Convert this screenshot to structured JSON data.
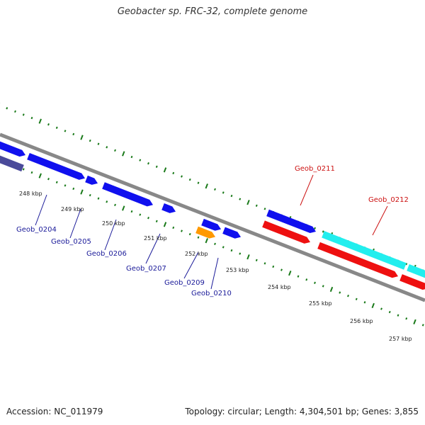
{
  "title": "Geobacter sp. FRC-32, complete genome",
  "footer": {
    "accession": "Accession: NC_011979",
    "topology": "Topology: circular; Length: 4,304,501 bp; Genes: 3,855"
  },
  "colors": {
    "backbone": "#888888",
    "tick": "#1a7a1a",
    "forward_gene": "#1010ee",
    "reverse_gene": "#ee1010",
    "rna_gene": "#22eeee",
    "orange_gene": "#ff9900",
    "dark_gene": "#4a4a9a",
    "forward_label": "#1a1a99",
    "reverse_label": "#cc1111"
  },
  "tick_labels": [
    "248 kbp",
    "249 kbp",
    "250 kbp",
    "251 kbp",
    "252 kbp",
    "253 kbp",
    "254 kbp",
    "255 kbp",
    "256 kbp",
    "257 kbp"
  ],
  "gene_labels": [
    {
      "name": "Geob_0204",
      "strand": "forward"
    },
    {
      "name": "Geob_0205",
      "strand": "forward"
    },
    {
      "name": "Geob_0206",
      "strand": "forward"
    },
    {
      "name": "Geob_0207",
      "strand": "forward"
    },
    {
      "name": "Geob_0209",
      "strand": "forward"
    },
    {
      "name": "Geob_0210",
      "strand": "forward"
    },
    {
      "name": "Geob_0211",
      "strand": "reverse"
    },
    {
      "name": "Geob_0212",
      "strand": "reverse"
    }
  ]
}
